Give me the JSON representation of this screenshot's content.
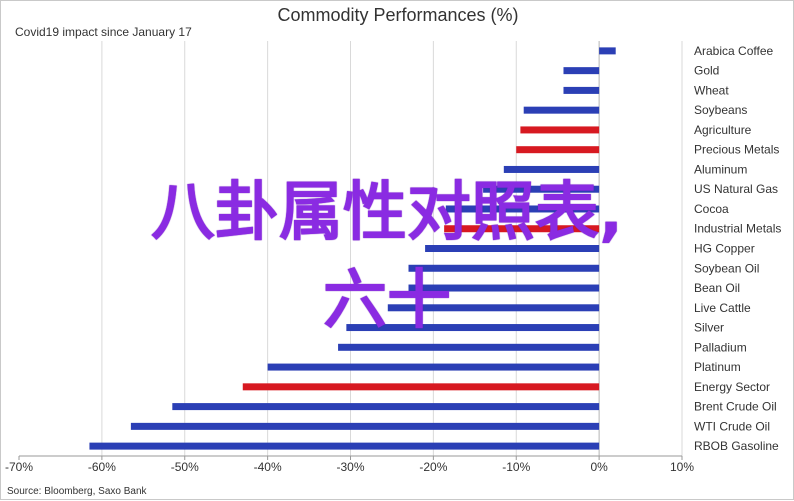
{
  "chart_data": {
    "type": "bar",
    "orientation": "horizontal",
    "title": "Commodity Performances (%)",
    "subtitle": "Covid19 impact since January 17",
    "source": "Source: Bloomberg, Saxo Bank",
    "xlim": [
      -70,
      10
    ],
    "x_ticks": [
      "-70%",
      "-60%",
      "-50%",
      "-40%",
      "-30%",
      "-20%",
      "-10%",
      "0%",
      "10%"
    ],
    "grid": true,
    "categories": [
      "Arabica Coffee",
      "Gold",
      "Wheat",
      "Soybeans",
      "Agriculture",
      "Precious Metals",
      "Aluminum",
      "US Natural Gas",
      "Cocoa",
      "Industrial Metals",
      "HG Copper",
      "Soybean Oil",
      "Bean Oil",
      "Live Cattle",
      "Silver",
      "Palladium",
      "Platinum",
      "Energy Sector",
      "Brent Crude Oil",
      "WTI Crude Oil",
      "RBOB Gasoline"
    ],
    "values": [
      2,
      -4.3,
      -4.3,
      -9.1,
      -9.5,
      -10,
      -11.5,
      -14,
      -18.5,
      -18.7,
      -21,
      -23,
      -23,
      -25.5,
      -30.5,
      -31.5,
      -40,
      -43,
      -51.5,
      -56.5,
      -61.5
    ],
    "bar_colors": [
      "#2b3fb5",
      "#2b3fb5",
      "#2b3fb5",
      "#2b3fb5",
      "#d71921",
      "#d71921",
      "#2b3fb5",
      "#2b3fb5",
      "#2b3fb5",
      "#d71921",
      "#2b3fb5",
      "#2b3fb5",
      "#2b3fb5",
      "#2b3fb5",
      "#2b3fb5",
      "#2b3fb5",
      "#2b3fb5",
      "#d71921",
      "#2b3fb5",
      "#2b3fb5",
      "#2b3fb5"
    ]
  },
  "overlay": {
    "line1": "八卦属性对照表,",
    "line2": "六十"
  },
  "colors": {
    "overlay": "#8a2be2",
    "bar_blue": "#2b3fb5",
    "bar_red": "#d71921"
  }
}
